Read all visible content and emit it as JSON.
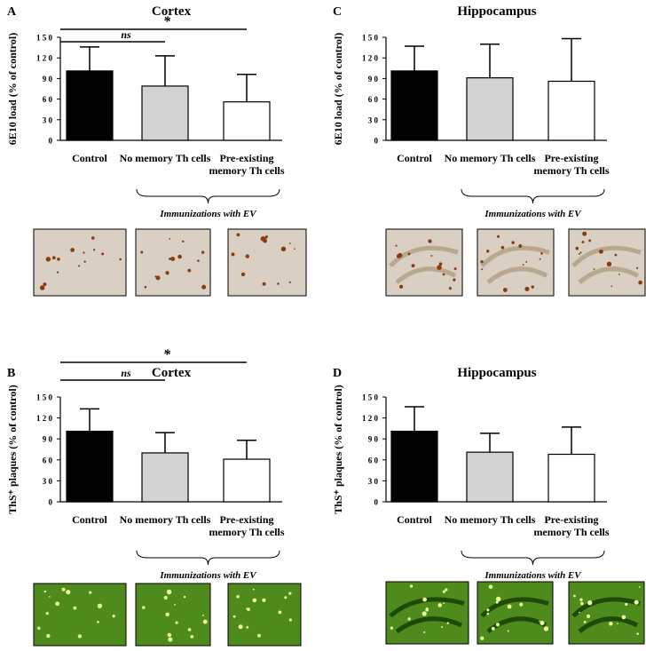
{
  "chart_data": [
    {
      "type": "bar",
      "letter": "A",
      "title": "Cortex",
      "y_label": "6E10 load (% of control)",
      "categories": [
        "Control",
        "No memory Th cells",
        "Pre-existing memory Th cells"
      ],
      "values": [
        101,
        79,
        56
      ],
      "errors": [
        35,
        44,
        40
      ],
      "colors": [
        "#000000",
        "#d3d3d3",
        "#ffffff"
      ],
      "ylim": [
        0,
        150
      ],
      "yticks": [
        0,
        {
          "value": 30,
          "label": "3 0"
        },
        {
          "value": 60,
          "label": "6 0"
        },
        {
          "value": 90,
          "label": "9 0"
        },
        {
          "value": 120,
          "label": "1 2 0"
        },
        {
          "value": 150,
          "label": "1 5 0"
        }
      ],
      "group_label": "Immunizations with EV",
      "comparisons": [
        {
          "label": "ns",
          "pair": [
            0,
            1
          ]
        },
        {
          "label": "*",
          "pair": [
            0,
            2
          ]
        }
      ]
    },
    {
      "type": "bar",
      "letter": "B",
      "title": "Cortex",
      "y_label": "ThS⁺ plaques (% of control)",
      "categories": [
        "Control",
        "No memory Th cells",
        "Pre-existing memory Th cells"
      ],
      "values": [
        101,
        70,
        61
      ],
      "errors": [
        32,
        29,
        27
      ],
      "colors": [
        "#000000",
        "#d3d3d3",
        "#ffffff"
      ],
      "ylim": [
        0,
        150
      ],
      "yticks": [
        0,
        {
          "value": 30,
          "label": "3 0"
        },
        {
          "value": 60,
          "label": "6 0"
        },
        {
          "value": 90,
          "label": "9 0"
        },
        {
          "value": 120,
          "label": "1 2 0"
        },
        {
          "value": 150,
          "label": "1 5 0"
        }
      ],
      "group_label": "Immunizations with EV",
      "comparisons": [
        {
          "label": "ns",
          "pair": [
            0,
            1
          ]
        },
        {
          "label": "*",
          "pair": [
            0,
            2
          ]
        }
      ]
    },
    {
      "type": "bar",
      "letter": "C",
      "title": "Hippocampus",
      "y_label": "6E10 load (% of control)",
      "categories": [
        "Control",
        "No memory Th cells",
        "Pre-existing memory Th cells"
      ],
      "values": [
        101,
        91,
        86
      ],
      "errors": [
        36,
        49,
        62
      ],
      "colors": [
        "#000000",
        "#d3d3d3",
        "#ffffff"
      ],
      "ylim": [
        0,
        150
      ],
      "yticks": [
        0,
        {
          "value": 30,
          "label": "3 0"
        },
        {
          "value": 60,
          "label": "6 0"
        },
        {
          "value": 90,
          "label": "9 0"
        },
        {
          "value": 120,
          "label": "1 2 0"
        },
        {
          "value": 150,
          "label": "1 5 0"
        }
      ],
      "group_label": "Immunizations with EV"
    },
    {
      "type": "bar",
      "letter": "D",
      "title": "Hippocampus",
      "y_label": "ThS⁺ plaques (% of control)",
      "categories": [
        "Control",
        "No memory Th cells",
        "Pre-existing memory Th cells"
      ],
      "values": [
        101,
        71,
        68
      ],
      "errors": [
        35,
        27,
        39
      ],
      "colors": [
        "#000000",
        "#d3d3d3",
        "#ffffff"
      ],
      "ylim": [
        0,
        150
      ],
      "yticks": [
        0,
        {
          "value": 30,
          "label": "3 0"
        },
        {
          "value": 60,
          "label": "6 0"
        },
        {
          "value": 90,
          "label": "9 0"
        },
        {
          "value": 120,
          "label": "1 2 0"
        },
        {
          "value": 150,
          "label": "1 5 0"
        }
      ],
      "group_label": "Immunizations with EV"
    }
  ]
}
